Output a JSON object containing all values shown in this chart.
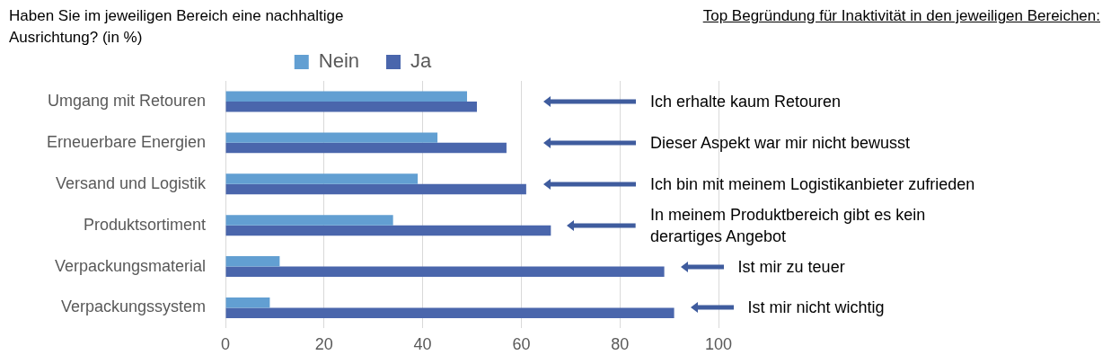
{
  "chart_data": {
    "type": "bar",
    "orientation": "horizontal",
    "title": "Haben Sie im jeweiligen Bereich eine nachhaltige Ausrichtung? (in %)",
    "subtitle": "Top Begründung für Inaktivität in den jeweiligen Bereichen:",
    "categories": [
      "Umgang mit Retouren",
      "Erneuerbare Energien",
      "Versand und Logistik",
      "Produktsortiment",
      "Verpackungsmaterial",
      "Verpackungssystem"
    ],
    "series": [
      {
        "name": "Nein",
        "color": "#629fd2",
        "values": [
          49,
          43,
          39,
          34,
          11,
          9
        ]
      },
      {
        "name": "Ja",
        "color": "#4a66ac",
        "values": [
          51,
          57,
          61,
          66,
          89,
          91
        ]
      }
    ],
    "xlim": [
      0,
      100
    ],
    "xticks": [
      0,
      20,
      40,
      60,
      80,
      100
    ],
    "grid": "x",
    "legend": "top",
    "annotations": [
      "Ich erhalte kaum Retouren",
      "Dieser Aspekt war mir nicht bewusst",
      "Ich bin mit meinem Logistikanbieter zufrieden",
      "In meinem Produktbereich gibt es kein derartiges Angebot",
      "Ist mir zu teuer",
      "Ist mir nicht wichtig"
    ]
  }
}
